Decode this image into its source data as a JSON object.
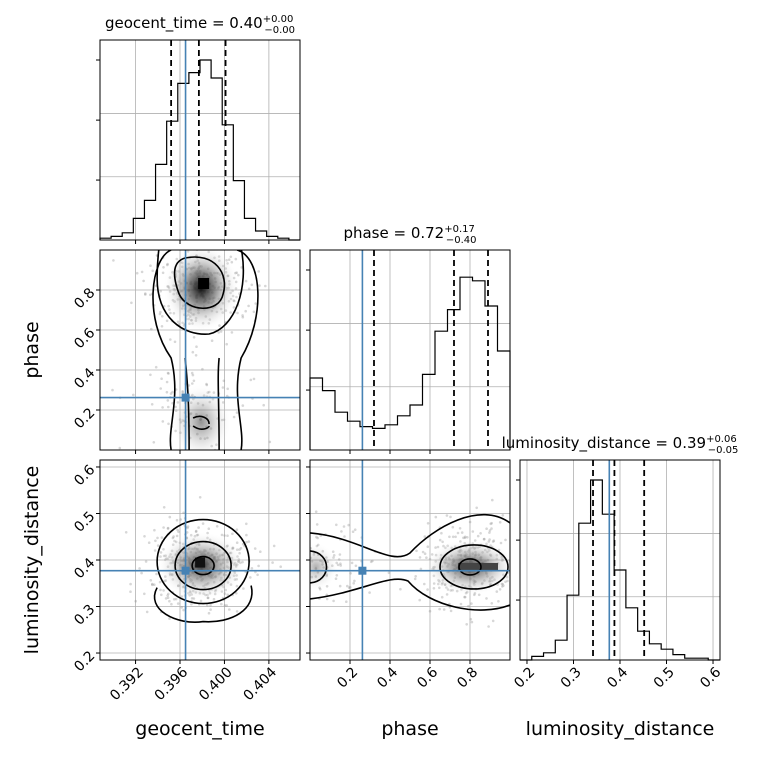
{
  "chart_data": {
    "type": "corner",
    "parameters": [
      {
        "name": "geocent_time",
        "xlabel": "geocent_time",
        "title_value": "0.40",
        "title_plus": "+0.00",
        "title_minus": "−0.00",
        "range": [
          0.3888,
          0.4068
        ],
        "ticks": [
          0.392,
          0.396,
          0.4,
          0.404
        ],
        "tick_labels": [
          "0.392",
          "0.396",
          "0.400",
          "0.404"
        ],
        "truth": 0.3965,
        "quantiles": [
          0.3952,
          0.3977,
          0.4001
        ],
        "histogram": [
          0.01,
          0.02,
          0.04,
          0.12,
          0.22,
          0.42,
          0.66,
          0.87,
          0.93,
          1.0,
          0.9,
          0.64,
          0.33,
          0.12,
          0.05,
          0.02,
          0.01,
          0.0
        ]
      },
      {
        "name": "phase",
        "xlabel": "phase",
        "ylabel": "phase",
        "title_value": "0.72",
        "title_plus": "+0.17",
        "title_minus": "−0.40",
        "range": [
          0.0,
          1.0
        ],
        "ticks": [
          0.2,
          0.4,
          0.6,
          0.8
        ],
        "tick_labels": [
          "0.2",
          "0.4",
          "0.6",
          "0.8"
        ],
        "truth": 0.262,
        "quantiles": [
          0.32,
          0.72,
          0.89
        ],
        "histogram": [
          0.4,
          0.33,
          0.21,
          0.16,
          0.13,
          0.12,
          0.14,
          0.19,
          0.25,
          0.42,
          0.66,
          0.78,
          0.96,
          0.94,
          0.8,
          0.55
        ]
      },
      {
        "name": "luminosity_distance",
        "xlabel": "luminosity_distance",
        "ylabel": "luminosity_distance",
        "title_value": "0.39",
        "title_plus": "+0.06",
        "title_minus": "−0.05",
        "range": [
          0.185,
          0.615
        ],
        "ticks": [
          0.2,
          0.3,
          0.4,
          0.5,
          0.6
        ],
        "tick_labels": [
          "0.2",
          "0.3",
          "0.4",
          "0.5",
          "0.6"
        ],
        "truth": 0.377,
        "quantiles": [
          0.342,
          0.388,
          0.452
        ],
        "histogram": [
          0.0,
          0.02,
          0.04,
          0.11,
          0.36,
          0.76,
          1.0,
          0.81,
          0.5,
          0.29,
          0.16,
          0.09,
          0.06,
          0.03,
          0.01,
          0.01,
          0.0
        ]
      }
    ],
    "pair_axes": {
      "geocent_time_phase_yticks": [
        0.2,
        0.4,
        0.6,
        0.8
      ],
      "luminosity_distance_yticks": [
        0.2,
        0.3,
        0.4,
        0.5,
        0.6
      ]
    },
    "grid": true,
    "truth_color": "#4682b4",
    "contour_color": "#000000"
  }
}
